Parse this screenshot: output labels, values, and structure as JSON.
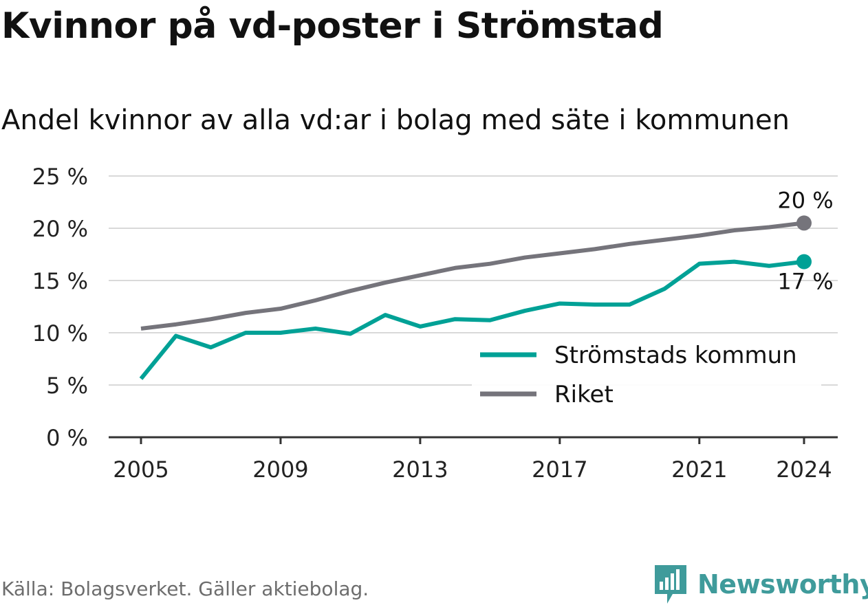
{
  "title": "Kvinnor på vd-poster i Strömstad",
  "subtitle": "Andel kvinnor av alla vd:ar i bolag med säte i kommunen",
  "source": "Källa: Bolagsverket. Gäller aktiebolag.",
  "brand": {
    "name": "Newsworthy",
    "icon": "newsworthy-logo-icon",
    "color": "#3f9b9b"
  },
  "chart_data": {
    "type": "line",
    "x": [
      2005,
      2006,
      2007,
      2008,
      2009,
      2010,
      2011,
      2012,
      2013,
      2014,
      2015,
      2016,
      2017,
      2018,
      2019,
      2020,
      2021,
      2022,
      2023,
      2024
    ],
    "series": [
      {
        "name": "Strömstads kommun",
        "color": "#00a196",
        "values": [
          5.6,
          9.7,
          8.6,
          10.0,
          10.0,
          10.4,
          9.9,
          11.7,
          10.6,
          11.3,
          11.2,
          12.1,
          12.8,
          12.7,
          12.7,
          14.2,
          16.6,
          16.8,
          16.4,
          16.8
        ],
        "end_label": "17 %"
      },
      {
        "name": "Riket",
        "color": "#75747b",
        "values": [
          10.4,
          10.8,
          11.3,
          11.9,
          12.3,
          13.1,
          14.0,
          14.8,
          15.5,
          16.2,
          16.6,
          17.2,
          17.6,
          18.0,
          18.5,
          18.9,
          19.3,
          19.8,
          20.1,
          20.5
        ],
        "end_label": "20 %"
      }
    ],
    "x_ticks": [
      2005,
      2009,
      2013,
      2017,
      2021,
      2024
    ],
    "y_ticks": [
      0,
      5,
      10,
      15,
      20,
      25
    ],
    "y_tick_labels": [
      "0 %",
      "5 %",
      "10 %",
      "15 %",
      "20 %",
      "25 %"
    ],
    "ylim": [
      0,
      25
    ],
    "xlim": [
      2005,
      2024
    ],
    "grid": true,
    "legend": "bottom-right"
  }
}
